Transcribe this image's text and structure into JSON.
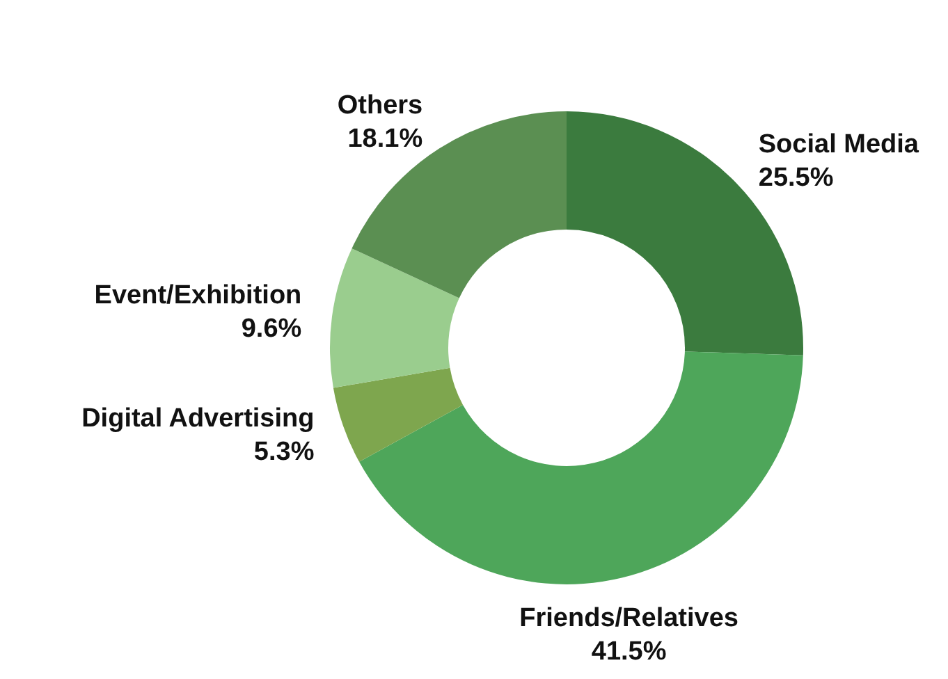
{
  "chart_data": {
    "type": "donut",
    "categories": [
      "Social Media",
      "Friends/Relatives",
      "Digital Advertising",
      "Event/Exhibition",
      "Others"
    ],
    "values": [
      25.5,
      41.5,
      5.3,
      9.6,
      18.1
    ],
    "value_labels": [
      "25.5%",
      "41.5%",
      "5.3%",
      "9.6%",
      "18.1%"
    ],
    "colors": [
      "#3b7b3e",
      "#4ea65a",
      "#7ea64e",
      "#9acd8e",
      "#5b8f52"
    ],
    "legend": false
  }
}
